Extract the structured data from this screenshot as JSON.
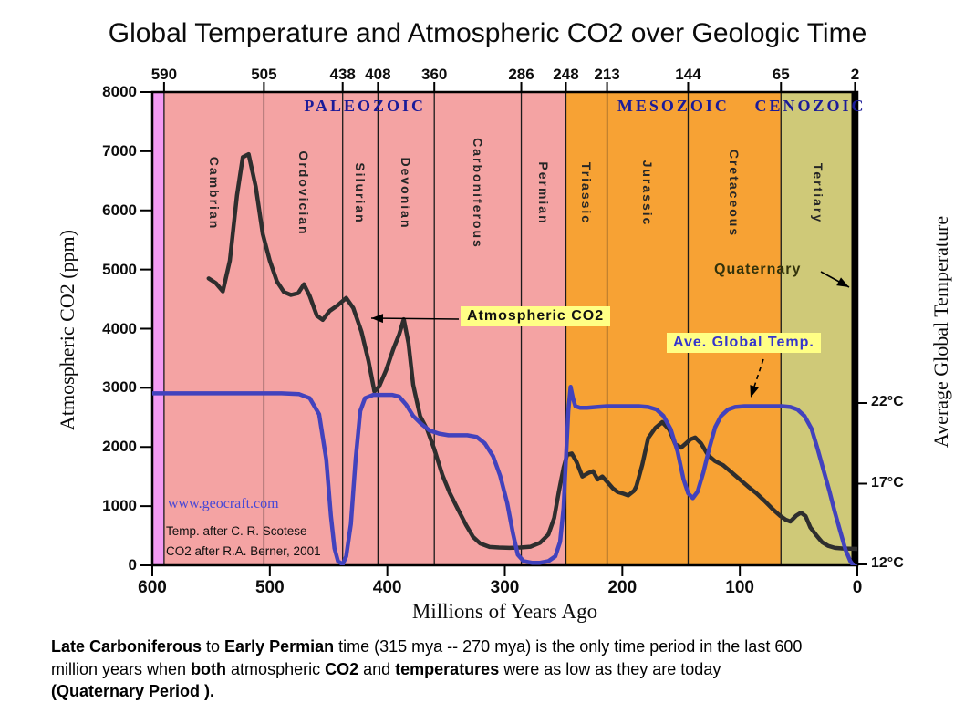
{
  "title": "Global Temperature and Atmospheric CO2 over Geologic Time",
  "axes": {
    "left": {
      "label": "Atmospheric CO2 (ppm)",
      "ticks": [
        8000,
        7000,
        6000,
        5000,
        4000,
        3000,
        2000,
        1000,
        0
      ]
    },
    "right": {
      "label": "Average Global Temperature",
      "ticks": [
        {
          "c": 22,
          "label": "22°C"
        },
        {
          "c": 17,
          "label": "17°C"
        },
        {
          "c": 12,
          "label": "12°C"
        }
      ]
    },
    "bottom": {
      "label": "Millions of Years Ago",
      "ticks": [
        600,
        500,
        400,
        300,
        200,
        100,
        0
      ]
    },
    "top": {
      "ticks": [
        590,
        505,
        438,
        408,
        360,
        286,
        248,
        213,
        144,
        65,
        2
      ]
    }
  },
  "annotations": {
    "co2": {
      "label": "Atmospheric CO2",
      "arrow": {
        "from": [
          503,
          350
        ],
        "to": [
          407,
          349
        ],
        "dashed": false
      }
    },
    "temp": {
      "label": "Ave. Global Temp.",
      "arrow": {
        "from": [
          837,
          394
        ],
        "to": [
          823,
          436
        ],
        "dashed": true
      }
    },
    "quaternary": {
      "label": "Quaternary",
      "arrow": {
        "from": [
          900,
          298
        ],
        "to": [
          931,
          315
        ],
        "dashed": false
      }
    }
  },
  "watermark": "www.geocraft.com",
  "credits": [
    "Temp. after C. R. Scotese",
    "CO2 after R.A. Berner, 2001"
  ],
  "caption": {
    "lines": [
      [
        {
          "t": "Late Carboniferous",
          "b": true
        },
        {
          "t": " to ",
          "b": false
        },
        {
          "t": "Early Permian",
          "b": true
        },
        {
          "t": " time (315 mya -- 270 mya) is the only time period in the last 600",
          "b": false
        }
      ],
      [
        {
          "t": "million years when ",
          "b": false
        },
        {
          "t": "both",
          "b": true
        },
        {
          "t": " atmospheric ",
          "b": false
        },
        {
          "t": "CO2",
          "b": true
        },
        {
          "t": " and ",
          "b": false
        },
        {
          "t": "temperatures",
          "b": true
        },
        {
          "t": " were as low as they are today",
          "b": false
        }
      ],
      [
        {
          "t": "(Quaternary Period ).",
          "b": true
        }
      ]
    ]
  },
  "colors": {
    "co2_curve": "#2e2e2e",
    "temp_curve": "#4242bd",
    "band_precambrian": "#f39af3",
    "band_paleozoic": "#f4a3a3",
    "band_mesozoic": "#f7a234",
    "band_cenozoic": "#cfc978",
    "era_text": "#1b1b99",
    "highlight": "#ffff85",
    "boundary_line": "#1a1a1a"
  },
  "chart_data": {
    "type": "line",
    "title": "Global Temperature and Atmospheric CO2 over Geologic Time",
    "xlabel": "Millions of Years Ago",
    "x_range": [
      600,
      0
    ],
    "grid": false,
    "left_axis": {
      "label": "Atmospheric CO2 (ppm)",
      "range": [
        0,
        8000
      ],
      "tick_step": 1000
    },
    "right_axis": {
      "label": "Average Global Temperature",
      "ticks_c": [
        12,
        17,
        22
      ]
    },
    "eras": [
      {
        "name": "PALEOZOIC",
        "start": 590,
        "end": 248
      },
      {
        "name": "MESOZOIC",
        "start": 248,
        "end": 65
      },
      {
        "name": "CENOZOIC",
        "start": 65,
        "end": 2,
        "label_center_ma": 40
      }
    ],
    "geologic_bands": [
      {
        "name": "",
        "start": 600,
        "end": 590,
        "fill": "#f39af3"
      },
      {
        "name": "Cambrian",
        "start": 590,
        "end": 505,
        "fill": "#f4a3a3"
      },
      {
        "name": "Ordovician",
        "start": 505,
        "end": 438,
        "fill": "#f4a3a3"
      },
      {
        "name": "Silurian",
        "start": 438,
        "end": 408,
        "fill": "#f4a3a3"
      },
      {
        "name": "Devonian",
        "start": 408,
        "end": 360,
        "fill": "#f4a3a3"
      },
      {
        "name": "Carboniferous",
        "start": 360,
        "end": 286,
        "fill": "#f4a3a3"
      },
      {
        "name": "Permian",
        "start": 286,
        "end": 248,
        "fill": "#f4a3a3"
      },
      {
        "name": "Triassic",
        "start": 248,
        "end": 213,
        "fill": "#f7a234"
      },
      {
        "name": "Jurassic",
        "start": 213,
        "end": 144,
        "fill": "#f7a234"
      },
      {
        "name": "Cretaceous",
        "start": 144,
        "end": 65,
        "fill": "#f7a234"
      },
      {
        "name": "Tertiary",
        "start": 65,
        "end": 2,
        "fill": "#cfc978"
      },
      {
        "name": "",
        "start": 2,
        "end": 0,
        "fill": "#cfc978"
      }
    ],
    "series": [
      {
        "name": "Atmospheric CO2",
        "axis": "left",
        "unit": "ppm",
        "color": "#2e2e2e",
        "points": [
          [
            552,
            4850
          ],
          [
            546,
            4770
          ],
          [
            540,
            4630
          ],
          [
            534,
            5150
          ],
          [
            528,
            6250
          ],
          [
            523,
            6900
          ],
          [
            518,
            6950
          ],
          [
            512,
            6400
          ],
          [
            506,
            5600
          ],
          [
            500,
            5150
          ],
          [
            494,
            4800
          ],
          [
            488,
            4620
          ],
          [
            482,
            4570
          ],
          [
            476,
            4600
          ],
          [
            471,
            4750
          ],
          [
            466,
            4550
          ],
          [
            460,
            4220
          ],
          [
            455,
            4150
          ],
          [
            449,
            4300
          ],
          [
            442,
            4400
          ],
          [
            435,
            4520
          ],
          [
            429,
            4350
          ],
          [
            422,
            3950
          ],
          [
            416,
            3450
          ],
          [
            411,
            2940
          ],
          [
            407,
            3020
          ],
          [
            401,
            3300
          ],
          [
            395,
            3650
          ],
          [
            390,
            3900
          ],
          [
            386,
            4160
          ],
          [
            382,
            3750
          ],
          [
            378,
            3050
          ],
          [
            372,
            2520
          ],
          [
            366,
            2290
          ],
          [
            360,
            1960
          ],
          [
            353,
            1520
          ],
          [
            347,
            1230
          ],
          [
            340,
            950
          ],
          [
            333,
            680
          ],
          [
            327,
            480
          ],
          [
            321,
            370
          ],
          [
            313,
            310
          ],
          [
            305,
            300
          ],
          [
            296,
            295
          ],
          [
            287,
            300
          ],
          [
            278,
            315
          ],
          [
            270,
            380
          ],
          [
            263,
            520
          ],
          [
            258,
            800
          ],
          [
            254,
            1250
          ],
          [
            250,
            1650
          ],
          [
            247,
            1870
          ],
          [
            243,
            1890
          ],
          [
            239,
            1750
          ],
          [
            234,
            1500
          ],
          [
            229,
            1560
          ],
          [
            225,
            1590
          ],
          [
            221,
            1450
          ],
          [
            217,
            1500
          ],
          [
            212,
            1390
          ],
          [
            208,
            1300
          ],
          [
            204,
            1240
          ],
          [
            199,
            1210
          ],
          [
            195,
            1180
          ],
          [
            190,
            1260
          ],
          [
            188,
            1340
          ],
          [
            183,
            1700
          ],
          [
            178,
            2150
          ],
          [
            172,
            2320
          ],
          [
            166,
            2420
          ],
          [
            160,
            2290
          ],
          [
            155,
            2050
          ],
          [
            150,
            1990
          ],
          [
            146,
            2060
          ],
          [
            142,
            2130
          ],
          [
            138,
            2160
          ],
          [
            133,
            2060
          ],
          [
            127,
            1860
          ],
          [
            121,
            1760
          ],
          [
            114,
            1690
          ],
          [
            107,
            1570
          ],
          [
            100,
            1450
          ],
          [
            93,
            1330
          ],
          [
            86,
            1220
          ],
          [
            79,
            1090
          ],
          [
            72,
            950
          ],
          [
            66,
            840
          ],
          [
            61,
            770
          ],
          [
            57,
            740
          ],
          [
            52,
            840
          ],
          [
            48,
            890
          ],
          [
            44,
            830
          ],
          [
            40,
            640
          ],
          [
            35,
            510
          ],
          [
            30,
            390
          ],
          [
            25,
            330
          ],
          [
            19,
            295
          ],
          [
            13,
            285
          ],
          [
            6,
            280
          ],
          [
            0,
            278
          ]
        ]
      },
      {
        "name": "Ave. Global Temp.",
        "axis": "right",
        "unit": "°C",
        "color": "#4242bd",
        "points": [
          [
            600,
            22.6
          ],
          [
            570,
            22.6
          ],
          [
            540,
            22.6
          ],
          [
            510,
            22.6
          ],
          [
            490,
            22.6
          ],
          [
            475,
            22.55
          ],
          [
            466,
            22.3
          ],
          [
            458,
            21.3
          ],
          [
            452,
            18.5
          ],
          [
            448,
            15.0
          ],
          [
            445,
            13.0
          ],
          [
            442,
            12.2
          ],
          [
            438,
            12.0
          ],
          [
            435,
            12.5
          ],
          [
            431,
            14.5
          ],
          [
            427,
            18.5
          ],
          [
            423,
            21.5
          ],
          [
            419,
            22.3
          ],
          [
            412,
            22.5
          ],
          [
            404,
            22.5
          ],
          [
            396,
            22.5
          ],
          [
            390,
            22.4
          ],
          [
            384,
            21.9
          ],
          [
            378,
            21.2
          ],
          [
            371,
            20.7
          ],
          [
            364,
            20.3
          ],
          [
            356,
            20.1
          ],
          [
            348,
            20.0
          ],
          [
            340,
            20.0
          ],
          [
            332,
            20.0
          ],
          [
            324,
            19.9
          ],
          [
            317,
            19.5
          ],
          [
            310,
            18.7
          ],
          [
            304,
            17.5
          ],
          [
            298,
            15.8
          ],
          [
            293,
            13.9
          ],
          [
            289,
            12.6
          ],
          [
            284,
            12.2
          ],
          [
            277,
            12.1
          ],
          [
            270,
            12.1
          ],
          [
            263,
            12.2
          ],
          [
            257,
            12.5
          ],
          [
            253,
            13.4
          ],
          [
            250,
            15.5
          ],
          [
            248,
            18.5
          ],
          [
            246,
            21.5
          ],
          [
            244,
            23.0
          ],
          [
            242,
            22.3
          ],
          [
            240,
            21.8
          ],
          [
            236,
            21.7
          ],
          [
            230,
            21.7
          ],
          [
            222,
            21.75
          ],
          [
            213,
            21.8
          ],
          [
            204,
            21.8
          ],
          [
            195,
            21.8
          ],
          [
            186,
            21.8
          ],
          [
            178,
            21.75
          ],
          [
            171,
            21.6
          ],
          [
            165,
            21.2
          ],
          [
            159,
            20.4
          ],
          [
            153,
            19.0
          ],
          [
            148,
            17.3
          ],
          [
            144,
            16.4
          ],
          [
            140,
            16.1
          ],
          [
            136,
            16.5
          ],
          [
            131,
            17.7
          ],
          [
            126,
            19.2
          ],
          [
            121,
            20.5
          ],
          [
            116,
            21.2
          ],
          [
            110,
            21.6
          ],
          [
            104,
            21.75
          ],
          [
            96,
            21.8
          ],
          [
            88,
            21.8
          ],
          [
            80,
            21.8
          ],
          [
            72,
            21.8
          ],
          [
            64,
            21.8
          ],
          [
            57,
            21.75
          ],
          [
            51,
            21.6
          ],
          [
            45,
            21.2
          ],
          [
            39,
            20.4
          ],
          [
            34,
            19.2
          ],
          [
            29,
            17.9
          ],
          [
            24,
            16.6
          ],
          [
            19,
            15.2
          ],
          [
            14,
            13.9
          ],
          [
            10,
            12.9
          ],
          [
            6,
            12.2
          ],
          [
            3,
            11.9
          ],
          [
            0,
            11.85
          ]
        ]
      }
    ]
  }
}
